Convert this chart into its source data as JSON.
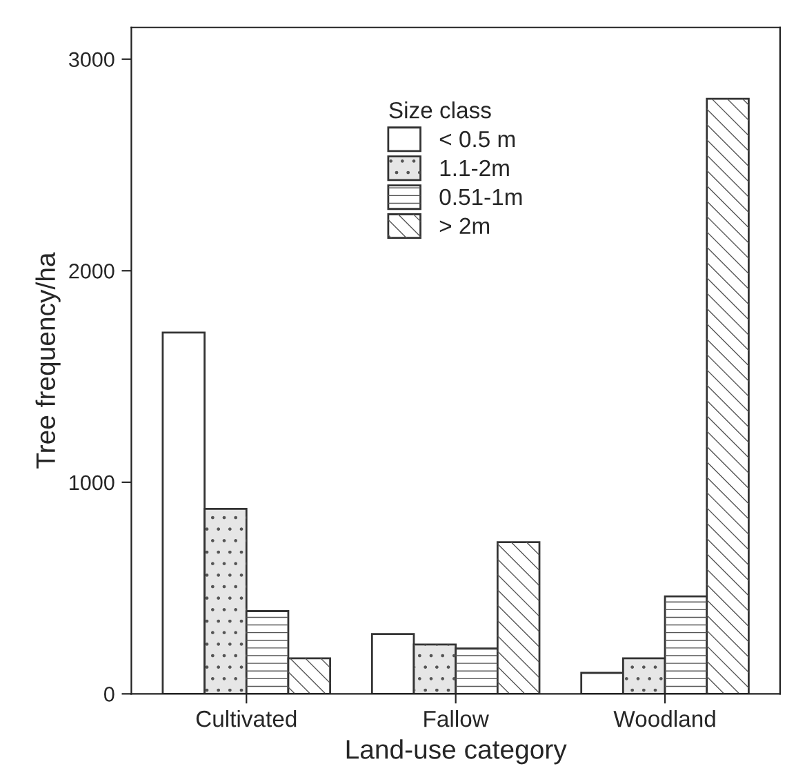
{
  "chart_data": {
    "type": "bar",
    "xlabel": "Land-use category",
    "ylabel": "Tree frequency/ha",
    "legend_title": "Size class",
    "categories": [
      "Cultivated",
      "Fallow",
      "Woodland"
    ],
    "series": [
      {
        "name": "< 0.5 m",
        "color": "#ffffff",
        "values": [
          1708,
          283,
          99
        ]
      },
      {
        "name": "1.1-2m",
        "color": "#e6e6e6",
        "values": [
          874,
          233,
          168
        ]
      },
      {
        "name": "0.51-1m",
        "color": "#ffffff",
        "values": [
          391,
          214,
          461
        ]
      },
      {
        "name": "> 2m",
        "color": "#ffffff",
        "values": [
          168,
          717,
          2813
        ]
      }
    ],
    "ylim": [
      0,
      3150
    ],
    "yticks": [
      0,
      1000,
      2000,
      3000
    ],
    "grid": false,
    "legend": "top"
  }
}
